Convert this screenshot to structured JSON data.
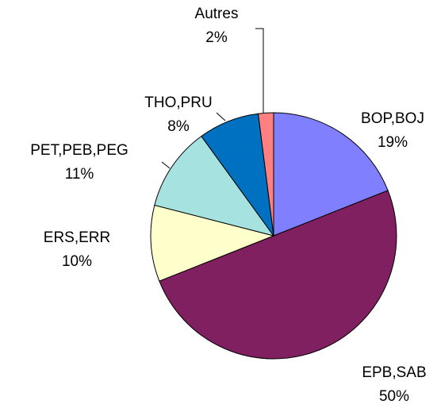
{
  "chart_data": {
    "type": "pie",
    "categories": [
      "BOP,BOJ",
      "EPB,SAB",
      "ERS,ERR",
      "PET,PEB,PEG",
      "THO,PRU",
      "Autres"
    ],
    "values": [
      19,
      50,
      10,
      11,
      8,
      2
    ],
    "value_labels": [
      "19%",
      "50%",
      "10%",
      "11%",
      "8%",
      "2%"
    ],
    "colors": [
      "#8080ff",
      "#802060",
      "#ffffcc",
      "#a6e3e0",
      "#0070c0",
      "#ff8080"
    ]
  }
}
